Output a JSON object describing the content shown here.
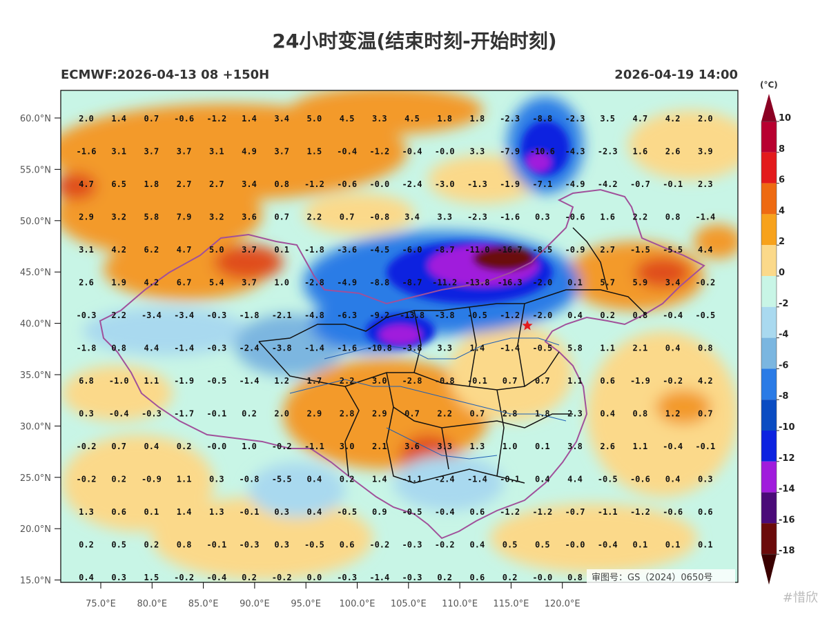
{
  "title": "24小时变温(结束时刻-开始时刻)",
  "model_info": "ECMWF:2026-04-13 08 +150H",
  "valid_time": "2026-04-19 14:00",
  "unit_label": "(°C)",
  "approval_number": "审图号：GS（2024）0650号",
  "watermark": "#惜欣",
  "lat_labels": [
    "60.0°N",
    "55.0°N",
    "50.0°N",
    "45.0°N",
    "40.0°N",
    "35.0°N",
    "30.0°N",
    "25.0°N",
    "20.0°N",
    "15.0°N"
  ],
  "lon_labels": [
    "75.0°E",
    "80.0°E",
    "85.0°E",
    "90.0°E",
    "95.0°E",
    "100.0°E",
    "105.0°E",
    "110.0°E",
    "115.0°E",
    "120.0°E"
  ],
  "colorbar": {
    "levels": [
      "10",
      "8",
      "6",
      "4",
      "2",
      "0",
      "-2",
      "-4",
      "-6",
      "-8",
      "-10",
      "-12",
      "-14",
      "-16",
      "-18"
    ],
    "colors": [
      "#b80030",
      "#e31a1c",
      "#ee6a12",
      "#f7a21c",
      "#fbd98a",
      "#c8f5e6",
      "#a9d9ef",
      "#7bb6e0",
      "#2a7be6",
      "#0a4cc2",
      "#0c22e0",
      "#a01bdc",
      "#4a0a78",
      "#6b0a0a",
      "#3a0000"
    ]
  },
  "grid_values": [
    [
      "2.0",
      "1.4",
      "0.7",
      "-0.6",
      "-1.2",
      "1.4",
      "3.4",
      "5.0",
      "4.5",
      "3.3",
      "4.5",
      "1.8",
      "1.8",
      "-2.3",
      "-8.8",
      "-2.3",
      "3.5",
      "4.7",
      "4.2",
      "2.0"
    ],
    [
      "-1.6",
      "3.1",
      "3.7",
      "3.7",
      "3.1",
      "4.9",
      "3.7",
      "1.5",
      "-0.4",
      "-1.2",
      "-0.4",
      "-0.0",
      "3.3",
      "-7.9",
      "-10.6",
      "-4.3",
      "-2.3",
      "1.6",
      "2.6",
      "3.9"
    ],
    [
      "4.7",
      "6.5",
      "1.8",
      "2.7",
      "2.7",
      "3.4",
      "0.8",
      "-1.2",
      "-0.6",
      "-0.0",
      "-2.4",
      "-3.0",
      "-1.3",
      "-1.9",
      "-7.1",
      "-4.9",
      "-4.2",
      "-0.7",
      "-0.1",
      "2.3"
    ],
    [
      "2.9",
      "3.2",
      "5.8",
      "7.9",
      "3.2",
      "3.6",
      "0.7",
      "2.2",
      "0.7",
      "-0.8",
      "3.4",
      "3.3",
      "-2.3",
      "-1.6",
      "0.3",
      "-0.6",
      "1.6",
      "2.2",
      "0.8",
      "-1.4"
    ],
    [
      "3.1",
      "4.2",
      "6.2",
      "4.7",
      "5.0",
      "3.7",
      "0.1",
      "-1.8",
      "-3.6",
      "-4.5",
      "-6.0",
      "-8.7",
      "-11.0",
      "-16.7",
      "-8.5",
      "-0.9",
      "2.7",
      "-1.5",
      "-5.5",
      "4.4"
    ],
    [
      "2.6",
      "1.9",
      "4.2",
      "6.7",
      "5.4",
      "3.7",
      "1.0",
      "-2.8",
      "-4.9",
      "-8.8",
      "-8.7",
      "-11.2",
      "-13.8",
      "-16.3",
      "-2.0",
      "0.1",
      "5.7",
      "5.9",
      "3.4",
      "-0.2"
    ],
    [
      "-0.3",
      "2.2",
      "-3.4",
      "-3.4",
      "-0.3",
      "-1.8",
      "-2.1",
      "-4.8",
      "-6.3",
      "-9.2",
      "-13.8",
      "-3.8",
      "-0.5",
      "-1.2",
      "-2.0",
      "0.4",
      "0.2",
      "0.8",
      "-0.4",
      "-0.5"
    ],
    [
      "-1.8",
      "0.8",
      "4.4",
      "-1.4",
      "-0.3",
      "-2.4",
      "-3.8",
      "-1.4",
      "-1.6",
      "-10.8",
      "-3.8",
      "3.3",
      "1.4",
      "-1.4",
      "-0.5",
      "5.8",
      "1.1",
      "2.1",
      "0.4",
      "0.8"
    ],
    [
      "6.8",
      "-1.0",
      "1.1",
      "-1.9",
      "-0.5",
      "-1.4",
      "1.2",
      "1.7",
      "2.2",
      "3.0",
      "-2.8",
      "-0.8",
      "-0.1",
      "0.7",
      "0.7",
      "1.1",
      "0.6",
      "-1.9",
      "-0.2",
      "4.2"
    ],
    [
      "0.3",
      "-0.4",
      "-0.3",
      "-1.7",
      "-0.1",
      "0.2",
      "2.0",
      "2.9",
      "2.8",
      "2.9",
      "0.7",
      "2.2",
      "0.7",
      "2.8",
      "1.8",
      "2.3",
      "0.4",
      "0.8",
      "1.2",
      "0.7"
    ],
    [
      "-0.2",
      "0.7",
      "0.4",
      "0.2",
      "-0.0",
      "1.0",
      "-0.2",
      "-1.1",
      "3.0",
      "2.1",
      "3.6",
      "3.3",
      "1.3",
      "1.0",
      "0.1",
      "3.8",
      "2.6",
      "1.1",
      "-0.4",
      "-0.1"
    ],
    [
      "-0.2",
      "0.2",
      "-0.9",
      "1.1",
      "0.3",
      "-0.8",
      "-5.5",
      "0.4",
      "0.2",
      "1.4",
      "-1.1",
      "-2.4",
      "-1.4",
      "-0.1",
      "0.4",
      "4.4",
      "-0.5",
      "-0.6",
      "0.4",
      "0.3"
    ],
    [
      "1.3",
      "0.6",
      "0.1",
      "1.4",
      "1.3",
      "-0.1",
      "0.3",
      "0.4",
      "-0.5",
      "0.9",
      "-0.5",
      "-0.4",
      "0.6",
      "-1.2",
      "-1.2",
      "-0.7",
      "-1.1",
      "-1.2",
      "-0.6",
      "0.6"
    ],
    [
      "0.2",
      "0.5",
      "0.2",
      "0.8",
      "-0.1",
      "-0.3",
      "0.3",
      "-0.5",
      "0.6",
      "-0.2",
      "-0.3",
      "-0.2",
      "0.4",
      "0.5",
      "0.5",
      "-0.0",
      "-0.4",
      "0.1",
      "0.1",
      "0.1"
    ],
    [
      "0.4",
      "0.3",
      "1.5",
      "-0.2",
      "-0.4",
      "0.2",
      "-0.2",
      "0.0",
      "-0.3",
      "-1.4",
      "-0.3",
      "0.2",
      "0.6",
      "0.2",
      "-0.0",
      "0.8",
      "",
      "",
      "",
      ""
    ]
  ],
  "colors": {
    "warm_strong": "#e04e1a",
    "warm": "#f39a2a",
    "warm_light": "#fbd98a",
    "neutral": "#c8f5e6",
    "cool_light": "#a9d9ef",
    "cool": "#2a7be6",
    "cold": "#0c22e0",
    "very_cold": "#a01bdc",
    "extreme_cold": "#6b0a0a",
    "border": "#a0509a",
    "province": "#111111",
    "river": "#1e5fb4",
    "city_marker": "#e31a1c"
  },
  "city_marker": "star"
}
